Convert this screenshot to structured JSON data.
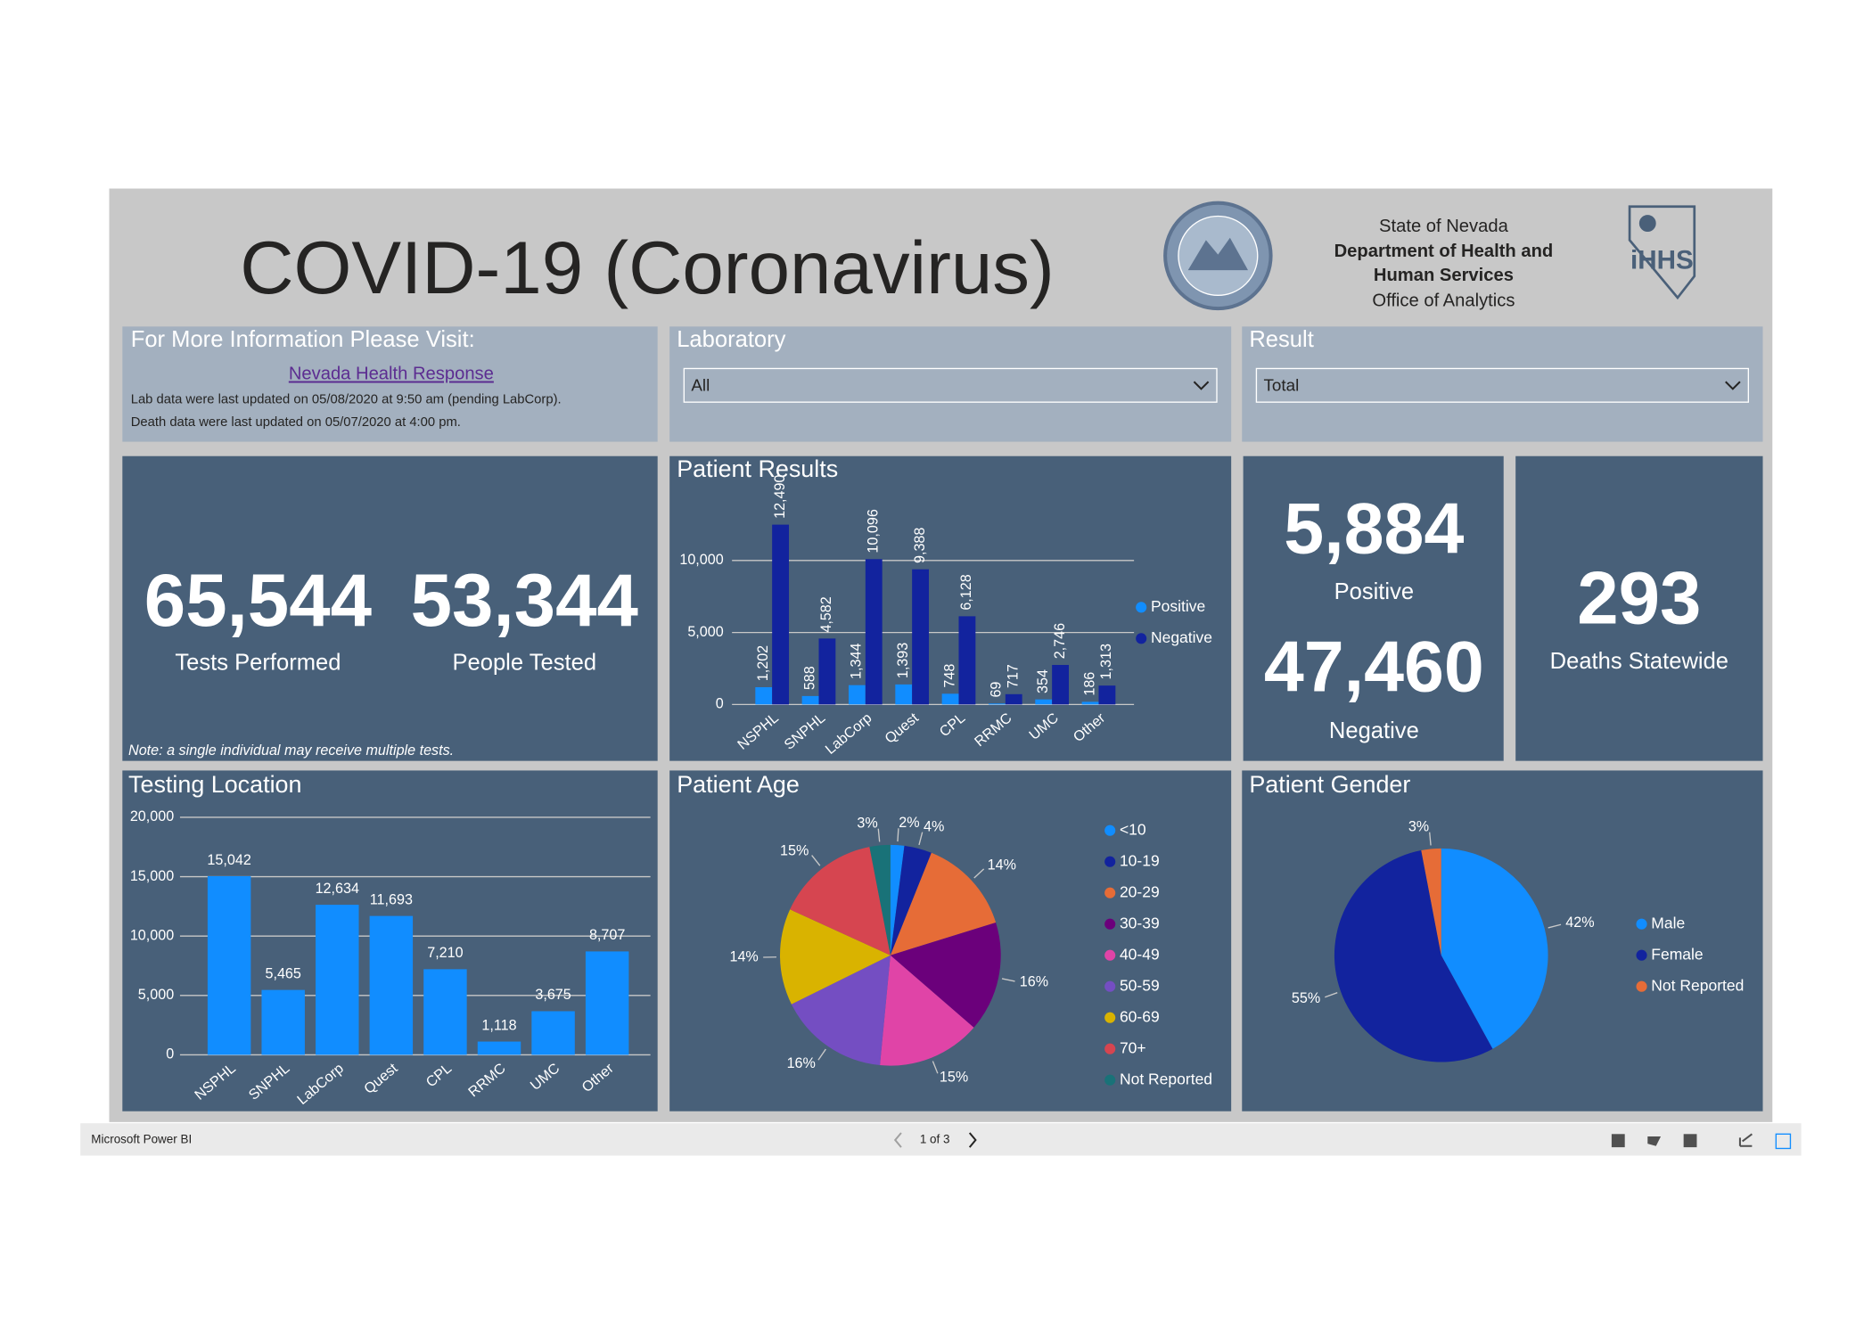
{
  "header": {
    "title": "COVID-19 (Coronavirus)",
    "org_lines": [
      "State of Nevada",
      "Department of Health and",
      "Human Services",
      "Office of Analytics"
    ]
  },
  "info": {
    "heading": "For More Information Please Visit:",
    "link": "Nevada Health Response",
    "notes": [
      "Lab data were last updated on 05/08/2020 at 9:50 am (pending LabCorp).",
      "Death data were last updated on 05/07/2020 at 4:00 pm."
    ]
  },
  "filters": [
    {
      "label": "Laboratory",
      "value": "All"
    },
    {
      "label": "Result",
      "value": "Total"
    }
  ],
  "kpis": {
    "tests": {
      "value": "65,544",
      "label": "Tests Performed"
    },
    "people": {
      "value": "53,344",
      "label": "People Tested"
    },
    "positive": {
      "value": "5,884",
      "label": "Positive"
    },
    "negative": {
      "value": "47,460",
      "label": "Negative"
    },
    "deaths": {
      "value": "293",
      "label": "Deaths Statewide"
    },
    "note": "Note: a single individual may receive multiple tests."
  },
  "footer": {
    "brand": "Microsoft Power BI",
    "pager": "1 of 3"
  },
  "chart_data": [
    {
      "type": "bar",
      "title": "Patient Results",
      "categories": [
        "NSPHL",
        "SNPHL",
        "LabCorp",
        "Quest",
        "CPL",
        "RRMC",
        "UMC",
        "Other"
      ],
      "series": [
        {
          "name": "Positive",
          "color": "#118dff",
          "values": [
            1202,
            588,
            1344,
            1393,
            748,
            69,
            354,
            186
          ],
          "value_labels": [
            "1,202",
            "588",
            "1,344",
            "1,393",
            "748",
            "69",
            "354",
            "186"
          ]
        },
        {
          "name": "Negative",
          "color": "#12239e",
          "values": [
            12490,
            4582,
            10096,
            9388,
            6128,
            717,
            2746,
            1313
          ],
          "value_labels": [
            "12,490",
            "4,582",
            "10,096",
            "9,388",
            "6,128",
            "717",
            "2,746",
            "1,313"
          ]
        }
      ],
      "ylim": [
        0,
        12500
      ],
      "yticks": [
        0,
        {
          "value": 5000,
          "label": "5,000"
        },
        {
          "value": 10000,
          "label": "10,000"
        }
      ],
      "grid": true
    },
    {
      "type": "bar",
      "title": "Testing Location",
      "categories": [
        "NSPHL",
        "SNPHL",
        "LabCorp",
        "Quest",
        "CPL",
        "RRMC",
        "UMC",
        "Other"
      ],
      "values": [
        15042,
        5465,
        12634,
        11693,
        7210,
        1118,
        3675,
        8707
      ],
      "value_labels": [
        "15,042",
        "5,465",
        "12,634",
        "11,693",
        "7,210",
        "1,118",
        "3,675",
        "8,707"
      ],
      "color": "#118dff",
      "ylim": [
        0,
        20000
      ],
      "yticks": [
        0,
        {
          "value": 5000,
          "label": "5,000"
        },
        {
          "value": 10000,
          "label": "10,000"
        },
        {
          "value": 15000,
          "label": "15,000"
        },
        {
          "value": 20000,
          "label": "20,000"
        }
      ],
      "grid": true
    },
    {
      "type": "pie",
      "title": "Patient Age",
      "categories": [
        "<10",
        "10-19",
        "20-29",
        "30-39",
        "40-49",
        "50-59",
        "60-69",
        "70+",
        "Not Reported"
      ],
      "values": [
        2,
        4,
        14,
        16,
        15,
        16,
        14,
        15,
        3
      ],
      "value_labels": [
        "2%",
        "4%",
        "14%",
        "16%",
        "15%",
        "16%",
        "14%",
        "15%",
        "3%"
      ],
      "colors": [
        "#118dff",
        "#12239e",
        "#e66c37",
        "#6b007b",
        "#e044a7",
        "#744ec2",
        "#d9b300",
        "#d64550",
        "#197278"
      ]
    },
    {
      "type": "pie",
      "title": "Patient Gender",
      "categories": [
        "Male",
        "Female",
        "Not Reported"
      ],
      "values": [
        42,
        55,
        3
      ],
      "value_labels": [
        "42%",
        "55%",
        "3%"
      ],
      "colors": [
        "#118dff",
        "#12239e",
        "#e66c37"
      ]
    }
  ]
}
